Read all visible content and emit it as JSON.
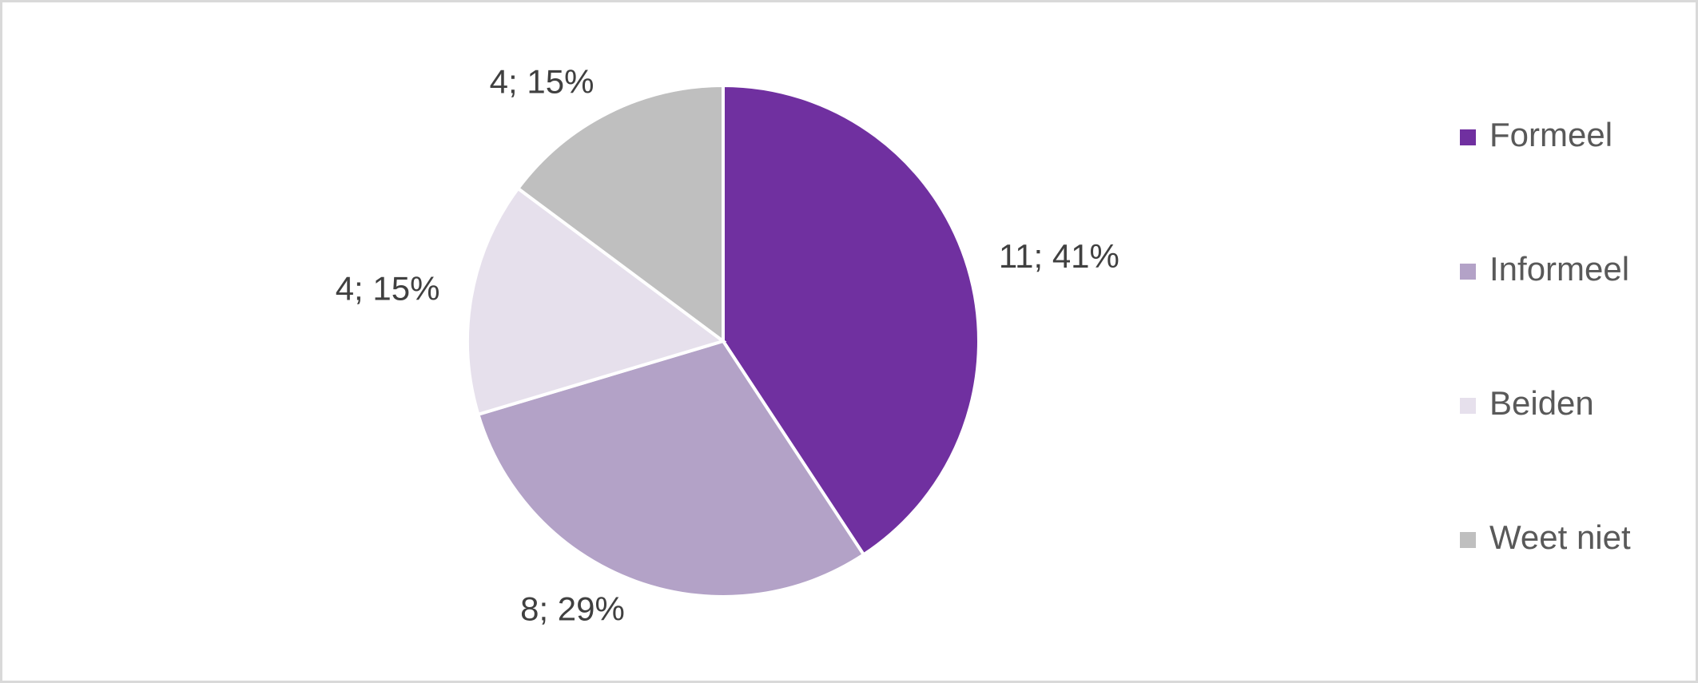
{
  "chart_data": {
    "type": "pie",
    "categories": [
      "Formeel",
      "Informeel",
      "Beiden",
      "Weet niet"
    ],
    "values": [
      11,
      8,
      4,
      4
    ],
    "value_labels": [
      "11; 41%",
      "8; 29%",
      "4; 15%",
      "4; 15%"
    ],
    "colors": [
      "#7030a0",
      "#b3a2c7",
      "#e6e0ec",
      "#bfbfbf"
    ],
    "legend": "right"
  }
}
